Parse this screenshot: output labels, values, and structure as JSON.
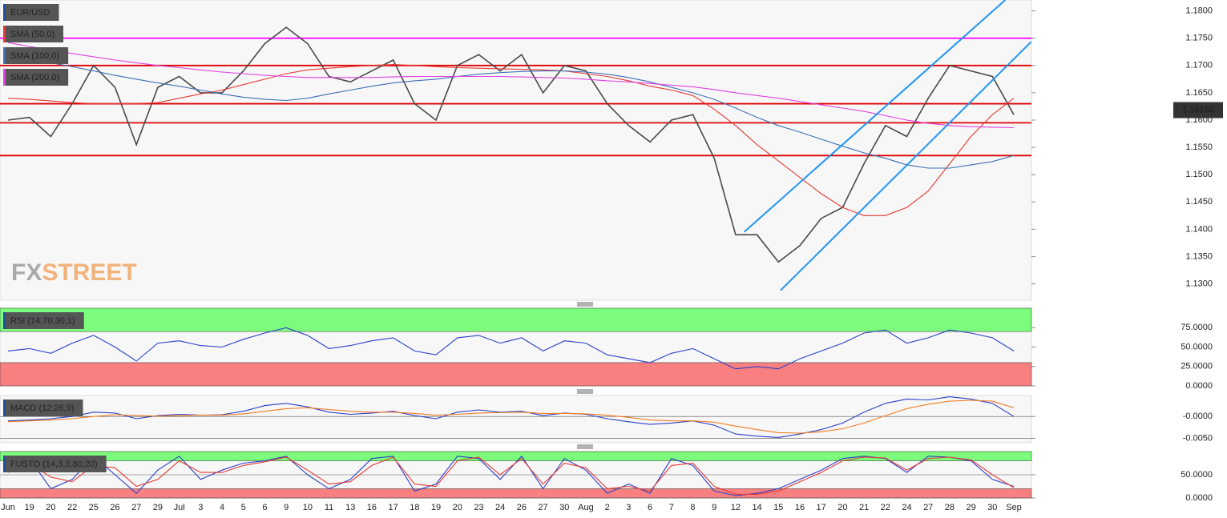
{
  "chart_data": [
    {
      "type": "line",
      "title": "EUR/USD",
      "categories": [
        "Jun",
        "19",
        "20",
        "22",
        "25",
        "26",
        "27",
        "29",
        "Jul",
        "3",
        "4",
        "5",
        "6",
        "9",
        "10",
        "11",
        "13",
        "16",
        "17",
        "18",
        "19",
        "20",
        "23",
        "24",
        "26",
        "27",
        "30",
        "Aug",
        "2",
        "3",
        "6",
        "7",
        "8",
        "9",
        "12",
        "14",
        "15",
        "16",
        "17",
        "20",
        "21",
        "22",
        "24",
        "27",
        "28",
        "29",
        "30",
        "Sep"
      ],
      "series": [
        {
          "color": "#4a4a4a",
          "values": [
            1.16,
            1.1605,
            1.157,
            1.163,
            1.17,
            1.166,
            1.1555,
            1.166,
            1.168,
            1.165,
            1.165,
            1.169,
            1.174,
            1.177,
            1.174,
            1.168,
            1.167,
            1.169,
            1.171,
            1.163,
            1.16,
            1.17,
            1.172,
            1.169,
            1.172,
            1.165,
            1.17,
            1.169,
            1.163,
            1.159,
            1.156,
            1.16,
            1.161,
            1.153,
            1.139,
            1.139,
            1.134,
            1.137,
            1.142,
            1.144,
            1.152,
            1.159,
            1.157,
            1.164,
            1.17,
            1.169,
            1.168,
            1.161
          ]
        },
        {
          "name": "SMA (50,0)",
          "color": "#e53935",
          "values": [
            1.164,
            1.1638,
            1.1635,
            1.1632,
            1.163,
            1.163,
            1.163,
            1.1632,
            1.164,
            1.1648,
            1.1655,
            1.1665,
            1.1675,
            1.1685,
            1.1692,
            1.1695,
            1.1698,
            1.17,
            1.1702,
            1.17,
            1.1698,
            1.1696,
            1.1695,
            1.1694,
            1.1693,
            1.1692,
            1.169,
            1.1685,
            1.168,
            1.1672,
            1.1662,
            1.1655,
            1.1645,
            1.162,
            1.159,
            1.1555,
            1.1525,
            1.1495,
            1.1465,
            1.144,
            1.1425,
            1.1425,
            1.144,
            1.147,
            1.152,
            1.157,
            1.161,
            1.164
          ]
        },
        {
          "name": "SMA (100,0)",
          "color": "#3f6fb5",
          "values": [
            1.172,
            1.1712,
            1.1705,
            1.1698,
            1.169,
            1.1682,
            1.1675,
            1.1668,
            1.1662,
            1.1655,
            1.1648,
            1.1642,
            1.1638,
            1.1636,
            1.164,
            1.1648,
            1.1655,
            1.1662,
            1.1668,
            1.1672,
            1.1675,
            1.168,
            1.1684,
            1.1687,
            1.1689,
            1.169,
            1.169,
            1.1688,
            1.1684,
            1.1678,
            1.167,
            1.166,
            1.165,
            1.1638,
            1.1622,
            1.1605,
            1.159,
            1.1578,
            1.1565,
            1.1552,
            1.154,
            1.153,
            1.1518,
            1.1512,
            1.1512,
            1.1518,
            1.1524,
            1.1535
          ]
        },
        {
          "name": "SMA (200,0)",
          "color": "#e040e0",
          "values": [
            1.1742,
            1.1735,
            1.1728,
            1.1722,
            1.1716,
            1.171,
            1.1705,
            1.17,
            1.1696,
            1.1692,
            1.1688,
            1.1685,
            1.1682,
            1.168,
            1.1678,
            1.1678,
            1.1678,
            1.1678,
            1.1679,
            1.168,
            1.168,
            1.168,
            1.168,
            1.168,
            1.1679,
            1.1678,
            1.1677,
            1.1675,
            1.1672,
            1.167,
            1.1667,
            1.1664,
            1.1661,
            1.1656,
            1.165,
            1.1645,
            1.164,
            1.1634,
            1.1628,
            1.1622,
            1.1616,
            1.1608,
            1.16,
            1.1594,
            1.159,
            1.1588,
            1.1587,
            1.1586
          ]
        }
      ],
      "levels": [
        {
          "value": 1.175,
          "color": "#ff00ff"
        },
        {
          "value": 1.17,
          "color": "#e00000"
        },
        {
          "value": 1.163,
          "color": "#e00000"
        },
        {
          "value": 1.1595,
          "color": "#e00000"
        },
        {
          "value": 1.1535,
          "color": "#e00000"
        }
      ],
      "trend_color": "#2196f3",
      "trend_lines": [
        {
          "x": [
            34.4,
            46.6
          ],
          "y": [
            1.1395,
            1.182
          ]
        },
        {
          "x": [
            36.1,
            47.8
          ],
          "y": [
            1.1288,
            1.1743
          ]
        }
      ],
      "last_price": 1.16183,
      "watermark": [
        "FX",
        "STREET"
      ],
      "ylim": [
        1.127,
        1.182
      ],
      "yticks": [
        {
          "value": 1.18,
          "label": "1.1800"
        },
        {
          "value": 1.175,
          "label": "1.1750"
        },
        {
          "value": 1.17,
          "label": "1.1700"
        },
        {
          "value": 1.165,
          "label": "1.1650"
        },
        {
          "value": 1.16,
          "label": "1.1600"
        },
        {
          "value": 1.155,
          "label": "1.1550"
        },
        {
          "value": 1.15,
          "label": "1.1500"
        },
        {
          "value": 1.145,
          "label": "1.1450"
        },
        {
          "value": 1.14,
          "label": "1.1400"
        },
        {
          "value": 1.135,
          "label": "1.1350"
        },
        {
          "value": 1.13,
          "label": "1.1300"
        }
      ]
    },
    {
      "type": "line",
      "title": "RSI (14,70,30,1)",
      "series": [
        {
          "color": "#2a3fc7",
          "values": [
            45,
            48,
            42,
            55,
            65,
            50,
            32,
            55,
            58,
            52,
            50,
            60,
            68,
            75,
            65,
            48,
            52,
            58,
            62,
            45,
            40,
            62,
            65,
            55,
            62,
            45,
            58,
            55,
            40,
            35,
            30,
            42,
            48,
            35,
            22,
            25,
            22,
            35,
            45,
            55,
            68,
            72,
            55,
            62,
            72,
            68,
            62,
            45
          ]
        }
      ],
      "bands": [
        {
          "from": 70,
          "to": 100,
          "color": "#7cfc7c"
        },
        {
          "from": 0,
          "to": 30,
          "color": "#f88080"
        }
      ],
      "ylim": [
        0,
        100
      ],
      "yticks": [
        {
          "value": 75,
          "label": "75.0000"
        },
        {
          "value": 50,
          "label": "50.0000"
        },
        {
          "value": 25,
          "label": "25.0000"
        },
        {
          "value": 0,
          "label": "0.0000"
        }
      ]
    },
    {
      "type": "line",
      "title": "MACD (12,26,9)",
      "series": [
        {
          "color": "#2a3fc7",
          "values": [
            -0.001,
            -0.0008,
            -0.0005,
            0,
            0.001,
            0.0008,
            -0.0005,
            0.0002,
            0.0005,
            0.0003,
            0.0004,
            0.0012,
            0.0025,
            0.003,
            0.0022,
            0.001,
            0.0005,
            0.0008,
            0.0012,
            0.0002,
            -0.0005,
            0.001,
            0.0015,
            0.001,
            0.0012,
            0.0002,
            0.0008,
            0.0005,
            -0.0005,
            -0.0012,
            -0.0018,
            -0.0015,
            -0.001,
            -0.002,
            -0.004,
            -0.0045,
            -0.0048,
            -0.004,
            -0.003,
            -0.0015,
            0.001,
            0.003,
            0.004,
            0.0038,
            0.0045,
            0.004,
            0.003,
            0
          ]
        },
        {
          "color": "#f07c22",
          "values": [
            -0.0012,
            -0.001,
            -0.0008,
            -0.0005,
            0,
            0.0004,
            0.0002,
            0.0001,
            0.0002,
            0.0003,
            0.0003,
            0.0006,
            0.0012,
            0.0018,
            0.002,
            0.0016,
            0.0012,
            0.001,
            0.001,
            0.0007,
            0.0003,
            0.0005,
            0.0008,
            0.0009,
            0.001,
            0.0007,
            0.0007,
            0.0006,
            0.0003,
            -0.0002,
            -0.0008,
            -0.001,
            -0.001,
            -0.0013,
            -0.0022,
            -0.003,
            -0.0037,
            -0.0038,
            -0.0035,
            -0.0028,
            -0.0015,
            0.0002,
            0.0018,
            0.0028,
            0.0035,
            0.0037,
            0.0035,
            0.002
          ]
        }
      ],
      "ylim": [
        -0.006,
        0.0048
      ],
      "yticks": [
        {
          "value": 0,
          "label": "-0.0000"
        },
        {
          "value": -0.005,
          "label": "-0.0050"
        }
      ]
    },
    {
      "type": "line",
      "title": "FUSTO (14,3,3,80,20)",
      "series": [
        {
          "color": "#2a3fc7",
          "values": [
            60,
            85,
            20,
            40,
            90,
            50,
            10,
            60,
            90,
            40,
            60,
            75,
            80,
            90,
            50,
            20,
            40,
            85,
            90,
            15,
            30,
            90,
            85,
            40,
            90,
            20,
            85,
            60,
            10,
            30,
            10,
            85,
            70,
            15,
            5,
            10,
            20,
            40,
            60,
            85,
            90,
            85,
            55,
            90,
            88,
            80,
            40,
            25
          ]
        },
        {
          "color": "#e53935",
          "values": [
            55,
            75,
            45,
            35,
            70,
            65,
            25,
            40,
            80,
            55,
            55,
            70,
            78,
            88,
            60,
            30,
            35,
            70,
            88,
            30,
            25,
            80,
            88,
            50,
            85,
            30,
            75,
            65,
            20,
            25,
            15,
            70,
            75,
            25,
            8,
            8,
            15,
            35,
            55,
            80,
            88,
            86,
            60,
            85,
            88,
            82,
            50,
            22
          ]
        }
      ],
      "bands": [
        {
          "from": 80,
          "to": 100,
          "color": "#7cfc7c"
        },
        {
          "from": 0,
          "to": 20,
          "color": "#f88080"
        }
      ],
      "ylim": [
        0,
        100
      ],
      "yticks": [
        {
          "value": 50,
          "label": "50.0000"
        },
        {
          "value": 0,
          "label": "0.0000"
        }
      ]
    }
  ]
}
